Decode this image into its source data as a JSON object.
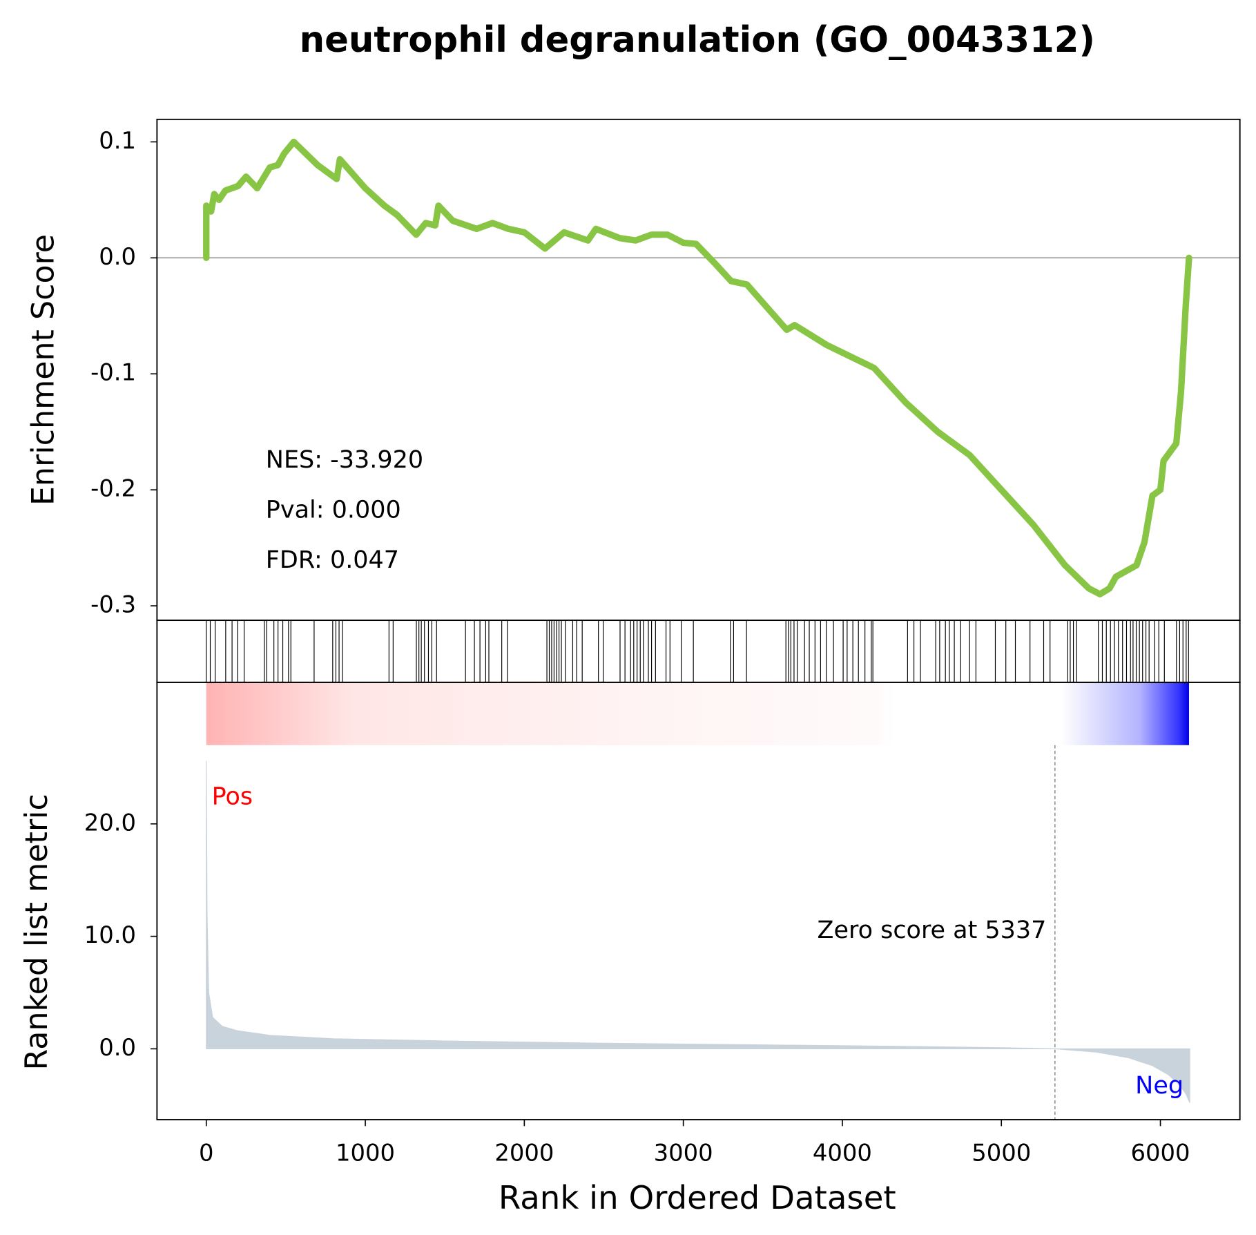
{
  "chart_data": {
    "type": "gsea",
    "title": "neutrophil degranulation (GO_0043312)",
    "xlabel": "Rank in Ordered Dataset",
    "ylabel": "Enrichment Score",
    "y2label": "Ranked list metric",
    "stats": [
      "NES: -33.920",
      "Pval: 0.000",
      "FDR: 0.047"
    ],
    "pos_label": "Pos",
    "neg_label": "Neg",
    "zero_score": {
      "x": 5337,
      "label": "Zero score at 5337"
    },
    "xlim": [
      -310,
      6500
    ],
    "xticks": [
      0,
      1000,
      2000,
      3000,
      4000,
      5000,
      6000
    ],
    "ylim": [
      -0.3125,
      0.1194
    ],
    "yticks": [
      0.1,
      {
        "value": 0,
        "label": "0.0"
      },
      -0.1,
      -0.2,
      -0.3
    ],
    "y2lim": [
      -6.3,
      27.0
    ],
    "y2ticks": [
      {
        "value": 0,
        "label": "0.0"
      },
      {
        "value": 10,
        "label": "10.0"
      },
      {
        "value": 20,
        "label": "20.0"
      }
    ],
    "es": {
      "color": "#88c544",
      "x": [
        0,
        0,
        30,
        50,
        80,
        120,
        200,
        250,
        320,
        400,
        450,
        490,
        550,
        700,
        820,
        840,
        1000,
        1120,
        1200,
        1320,
        1380,
        1440,
        1460,
        1550,
        1700,
        1800,
        1900,
        2000,
        2130,
        2250,
        2400,
        2450,
        2600,
        2700,
        2800,
        2900,
        3000,
        3080,
        3200,
        3300,
        3400,
        3650,
        3700,
        3900,
        4050,
        4200,
        4400,
        4600,
        4800,
        5000,
        5200,
        5400,
        5550,
        5620,
        5680,
        5720,
        5850,
        5900,
        5950,
        6000,
        6020,
        6100,
        6130,
        6160,
        6180
      ],
      "values": [
        0,
        0.045,
        0.04,
        0.055,
        0.05,
        0.058,
        0.062,
        0.07,
        0.06,
        0.078,
        0.08,
        0.09,
        0.1,
        0.08,
        0.068,
        0.085,
        0.06,
        0.045,
        0.037,
        0.02,
        0.03,
        0.028,
        0.045,
        0.032,
        0.025,
        0.03,
        0.025,
        0.022,
        0.008,
        0.022,
        0.015,
        0.025,
        0.017,
        0.015,
        0.02,
        0.02,
        0.013,
        0.012,
        -0.005,
        -0.02,
        -0.023,
        -0.062,
        -0.058,
        -0.075,
        -0.085,
        -0.095,
        -0.125,
        -0.15,
        -0.17,
        -0.2,
        -0.23,
        -0.265,
        -0.285,
        -0.29,
        -0.285,
        -0.275,
        -0.265,
        -0.245,
        -0.205,
        -0.2,
        -0.175,
        -0.16,
        -0.115,
        -0.04,
        0
      ]
    },
    "hits": [
      0,
      25,
      56,
      122,
      162,
      197,
      238,
      365,
      380,
      425,
      451,
      481,
      517,
      532,
      678,
      795,
      815,
      835,
      856,
      1149,
      1175,
      1321,
      1337,
      1352,
      1372,
      1397,
      1418,
      1448,
      1630,
      1686,
      1721,
      1757,
      1777,
      1858,
      1894,
      2142,
      2157,
      2172,
      2187,
      2203,
      2218,
      2233,
      2258,
      2304,
      2329,
      2364,
      2466,
      2496,
      2602,
      2633,
      2668,
      2688,
      2709,
      2729,
      2749,
      2780,
      2800,
      2825,
      2891,
      2916,
      2987,
      3063,
      3296,
      3316,
      3397,
      3645,
      3661,
      3676,
      3696,
      3716,
      3762,
      3792,
      3828,
      3863,
      3899,
      3944,
      4005,
      4030,
      4066,
      4101,
      4142,
      4182,
      4192,
      4410,
      4450,
      4491,
      4587,
      4612,
      4648,
      4673,
      4704,
      4744,
      4800,
      4840,
      4962,
      5028,
      5088,
      5180,
      5266,
      5306,
      5417,
      5433,
      5453,
      5473,
      5610,
      5635,
      5660,
      5686,
      5711,
      5736,
      5762,
      5787,
      5812,
      5828,
      5848,
      5868,
      5888,
      5909,
      5929,
      5964,
      5990,
      6025,
      6101,
      6121,
      6142,
      6162,
      6177
    ],
    "metric": {
      "color": "#c9d3db",
      "x": [
        0,
        5,
        15,
        40,
        100,
        200,
        400,
        800,
        1500,
        2500,
        3500,
        4500,
        5000,
        5337,
        5600,
        5800,
        5950,
        6050,
        6120,
        6160,
        6185
      ],
      "values": [
        25.6,
        12,
        5,
        2.8,
        2,
        1.6,
        1.2,
        0.9,
        0.7,
        0.5,
        0.35,
        0.2,
        0.1,
        0,
        -0.3,
        -0.8,
        -1.5,
        -2.3,
        -3.2,
        -4,
        -4.8
      ]
    }
  }
}
